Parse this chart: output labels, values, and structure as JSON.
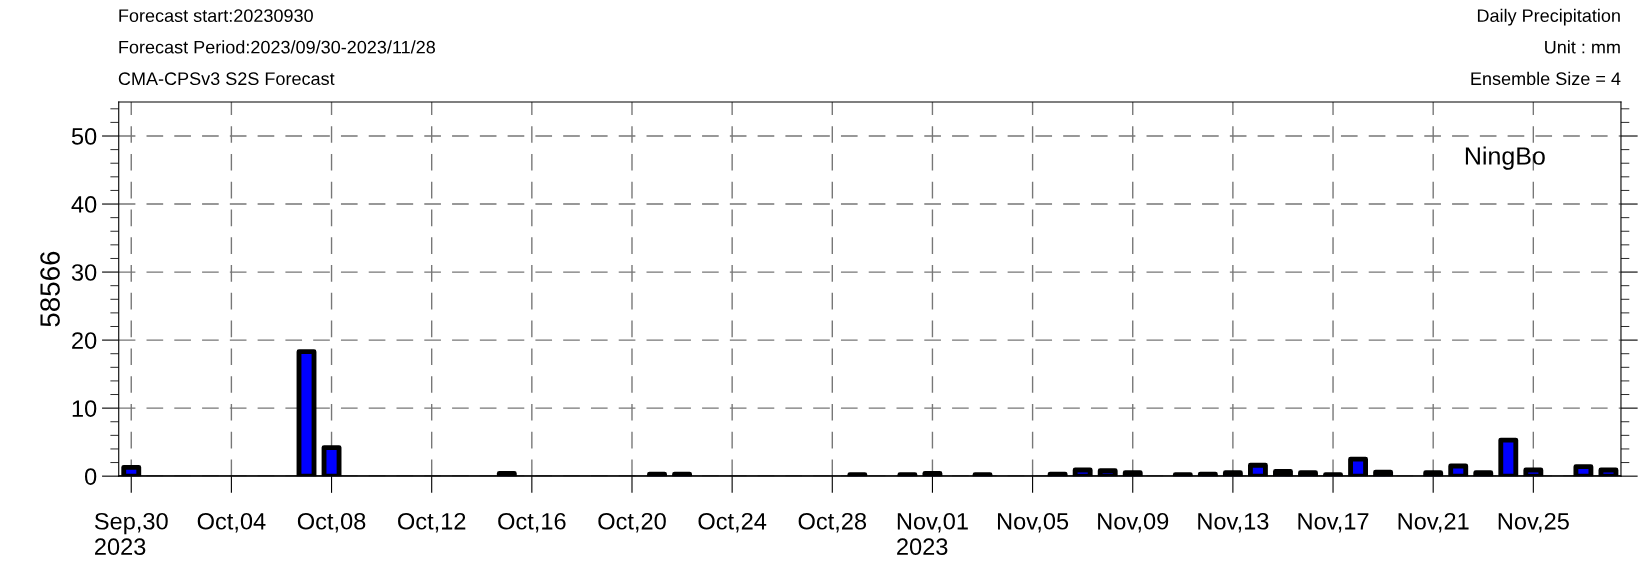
{
  "chart_data": {
    "type": "bar",
    "title": "Daily Precipitation",
    "subtitle": "Unit : mm",
    "ylabel": "58566",
    "annotations": [
      "Forecast start:20230930",
      "Forecast Period:2023/09/30-2023/11/28",
      "CMA-CPSv3 S2S Forecast",
      "Ensemble Size = 4",
      "NingBo"
    ],
    "x": [
      "2023-09-30",
      "2023-10-07",
      "2023-10-08",
      "2023-10-15",
      "2023-10-21",
      "2023-10-22",
      "2023-10-29",
      "2023-10-31",
      "2023-11-01",
      "2023-11-03",
      "2023-11-06",
      "2023-11-07",
      "2023-11-08",
      "2023-11-09",
      "2023-11-11",
      "2023-11-12",
      "2023-11-13",
      "2023-11-14",
      "2023-11-15",
      "2023-11-16",
      "2023-11-17",
      "2023-11-18",
      "2023-11-19",
      "2023-11-21",
      "2023-11-22",
      "2023-11-23",
      "2023-11-24",
      "2023-11-25",
      "2023-11-27",
      "2023-11-28"
    ],
    "values": [
      1.3,
      18.3,
      4.2,
      0.4,
      0.3,
      0.3,
      0.2,
      0.2,
      0.4,
      0.2,
      0.3,
      0.9,
      0.8,
      0.5,
      0.2,
      0.3,
      0.5,
      1.6,
      0.7,
      0.5,
      0.2,
      2.5,
      0.6,
      0.5,
      1.5,
      0.5,
      5.3,
      0.9,
      1.4,
      0.9
    ],
    "color": "#0000ff",
    "xlim": [
      "2023-09-29T12:00",
      "2023-11-28T12:00"
    ],
    "xticks": [
      {
        "value": "2023-09-30",
        "label": "Sep,30\n2023"
      },
      {
        "value": "2023-10-04",
        "label": "Oct,04"
      },
      {
        "value": "2023-10-08",
        "label": "Oct,08"
      },
      {
        "value": "2023-10-12",
        "label": "Oct,12"
      },
      {
        "value": "2023-10-16",
        "label": "Oct,16"
      },
      {
        "value": "2023-10-20",
        "label": "Oct,20"
      },
      {
        "value": "2023-10-24",
        "label": "Oct,24"
      },
      {
        "value": "2023-10-28",
        "label": "Oct,28"
      },
      {
        "value": "2023-11-01",
        "label": "Nov,01\n2023"
      },
      {
        "value": "2023-11-05",
        "label": "Nov,05"
      },
      {
        "value": "2023-11-09",
        "label": "Nov,09"
      },
      {
        "value": "2023-11-13",
        "label": "Nov,13"
      },
      {
        "value": "2023-11-17",
        "label": "Nov,17"
      },
      {
        "value": "2023-11-21",
        "label": "Nov,21"
      },
      {
        "value": "2023-11-25",
        "label": "Nov,25"
      }
    ],
    "ylim": [
      0,
      55
    ],
    "yticks": [
      0,
      {
        "value": 2,
        "label": null
      },
      {
        "value": 4,
        "label": null
      },
      {
        "value": 6,
        "label": null
      },
      {
        "value": 8,
        "label": null
      },
      10,
      {
        "value": 12,
        "label": null
      },
      {
        "value": 14,
        "label": null
      },
      {
        "value": 16,
        "label": null
      },
      {
        "value": 18,
        "label": null
      },
      20,
      {
        "value": 22,
        "label": null
      },
      {
        "value": 24,
        "label": null
      },
      {
        "value": 26,
        "label": null
      },
      {
        "value": 28,
        "label": null
      },
      30,
      {
        "value": 32,
        "label": null
      },
      {
        "value": 34,
        "label": null
      },
      {
        "value": 36,
        "label": null
      },
      {
        "value": 38,
        "label": null
      },
      40,
      {
        "value": 42,
        "label": null
      },
      {
        "value": 44,
        "label": null
      },
      {
        "value": 46,
        "label": null
      },
      {
        "value": 48,
        "label": null
      },
      50,
      {
        "value": 52,
        "label": null
      },
      {
        "value": 54,
        "label": null
      }
    ],
    "grid": true,
    "legend": false
  }
}
